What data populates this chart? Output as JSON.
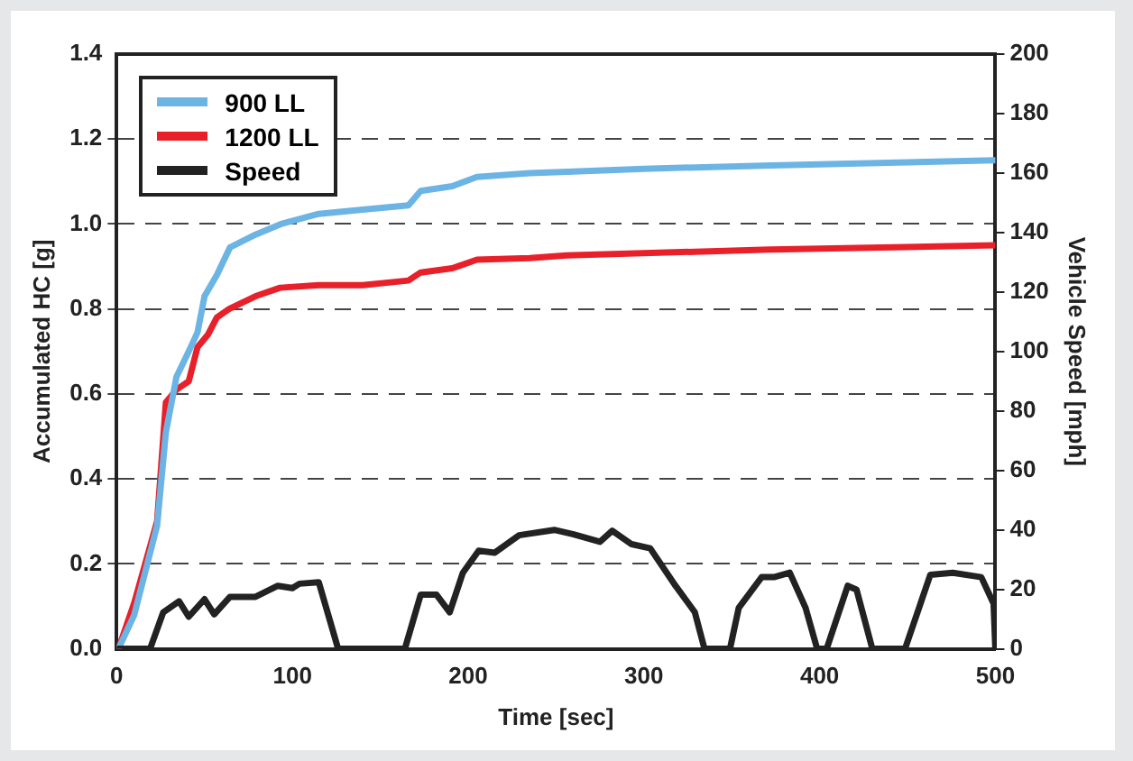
{
  "chart_data": {
    "type": "line",
    "xlabel": "Time [sec]",
    "ylabel": "Accumulated HC [g]",
    "y2label": "Vehicle Speed [mph]",
    "xlim": [
      0,
      500
    ],
    "xticks": [
      0,
      100,
      200,
      300,
      400,
      500
    ],
    "ylim": [
      0,
      1.4
    ],
    "yticks": [
      {
        "value": 0,
        "label": "0.0"
      },
      0.2,
      0.4,
      0.6,
      0.8,
      {
        "value": 1,
        "label": "1.0"
      },
      1.2,
      1.4
    ],
    "y2lim": [
      0,
      200
    ],
    "y2ticks": [
      0,
      20,
      40,
      60,
      80,
      100,
      120,
      140,
      160,
      180,
      200
    ],
    "grid": "y",
    "legend": "top left",
    "marker": "none",
    "line_style": "solid",
    "series": [
      {
        "name": "900 LL",
        "color": "#6cb4e4",
        "x": [
          1,
          10,
          23,
          28,
          34,
          41,
          46,
          50,
          57,
          64.5,
          79,
          93.5,
          115,
          140,
          166,
          173,
          191,
          205,
          235,
          256.5,
          300,
          372.5,
          500
        ],
        "values": [
          0,
          0.08,
          0.29,
          0.51,
          0.64,
          0.7,
          0.745,
          0.83,
          0.88,
          0.945,
          0.975,
          1.0,
          1.024,
          1.034,
          1.044,
          1.078,
          1.089,
          1.111,
          1.12,
          1.123,
          1.13,
          1.138,
          1.15
        ]
      },
      {
        "name": "1200 LL",
        "color": "#e8202a",
        "x": [
          1,
          10,
          23,
          28,
          34,
          41,
          46,
          52,
          57,
          64,
          79,
          93,
          115,
          140,
          166,
          173,
          191,
          205,
          235,
          256,
          372,
          500
        ],
        "values": [
          0,
          0.108,
          0.3,
          0.58,
          0.61,
          0.63,
          0.71,
          0.74,
          0.78,
          0.8,
          0.83,
          0.85,
          0.856,
          0.856,
          0.867,
          0.886,
          0.896,
          0.916,
          0.92,
          0.926,
          0.94,
          0.95
        ]
      },
      {
        "name": "Speed",
        "color": "#222222",
        "axis": "y2",
        "x": [
          1,
          19,
          26.5,
          35.5,
          41,
          50,
          55.5,
          64.5,
          79,
          91.7,
          100,
          104,
          115,
          126,
          164,
          173,
          182,
          189.5,
          197,
          206,
          215,
          229,
          245.6,
          249,
          260,
          275,
          282,
          293,
          303.6,
          318,
          329,
          334.5,
          349,
          354,
          367,
          374,
          383,
          392,
          398.6,
          404,
          416,
          421,
          430,
          448.6,
          463,
          475.8,
          492,
          499,
          500
        ],
        "values": [
          0,
          0,
          12.3,
          16,
          10.8,
          16.7,
          11.6,
          17.5,
          17.5,
          21.2,
          20.4,
          21.9,
          22.4,
          0,
          0,
          18.2,
          18.2,
          12.3,
          25.6,
          33,
          32.3,
          38.2,
          39.7,
          40,
          38.5,
          36,
          39.7,
          35.2,
          33.8,
          21.2,
          12.3,
          0,
          0,
          13.8,
          24.1,
          24.1,
          25.6,
          13.8,
          0,
          0,
          21.2,
          19.9,
          0,
          0,
          24.9,
          25.6,
          24.1,
          15.2,
          0
        ]
      }
    ]
  }
}
